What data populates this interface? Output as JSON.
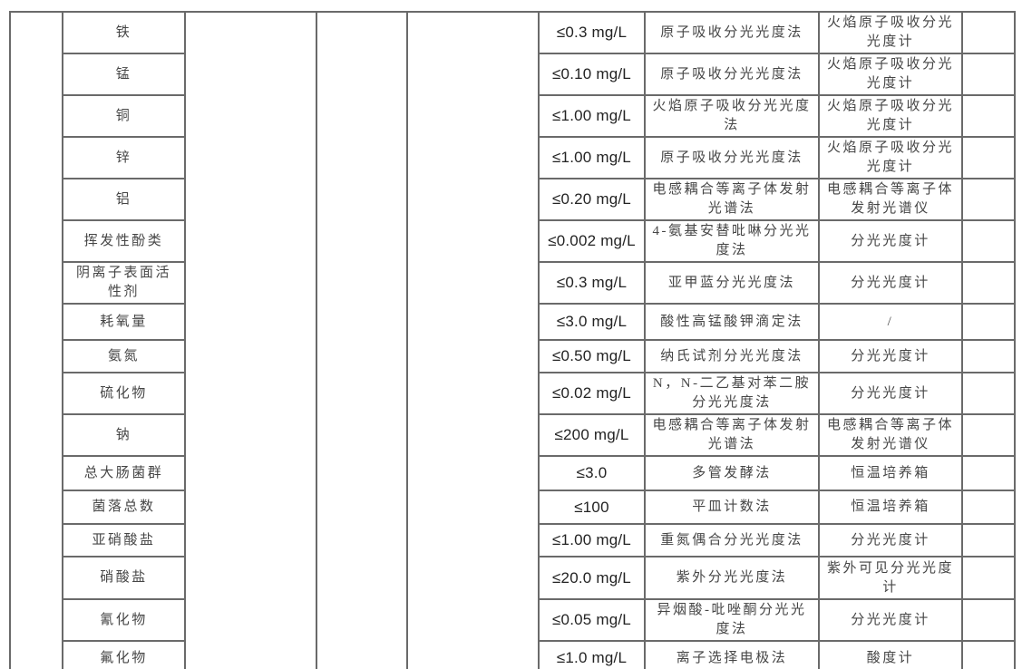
{
  "page": {
    "background_color": "#ffffff",
    "border_color": "#6a6a6a",
    "cjk_text_color": "#464646",
    "limit_text_color": "#232323"
  },
  "table": {
    "rows": [
      {
        "name": "铁",
        "limit": "≤0.3 mg/L",
        "method": "原子吸收分光光度法",
        "instrument": "火焰原子吸收分光\n光度计"
      },
      {
        "name": "锰",
        "limit": "≤0.10 mg/L",
        "method": "原子吸收分光光度法",
        "instrument": "火焰原子吸收分光\n光度计"
      },
      {
        "name": "铜",
        "limit": "≤1.00 mg/L",
        "method": "火焰原子吸收分光光度\n法",
        "instrument": "火焰原子吸收分光\n光度计"
      },
      {
        "name": "锌",
        "limit": "≤1.00 mg/L",
        "method": "原子吸收分光光度法",
        "instrument": "火焰原子吸收分光\n光度计"
      },
      {
        "name": "铝",
        "limit": "≤0.20 mg/L",
        "method": "电感耦合等离子体发射\n光谱法",
        "instrument": "电感耦合等离子体\n发射光谱仪"
      },
      {
        "name": "挥发性酚类",
        "limit": "≤0.002 mg/L",
        "method": "4-氨基安替吡啉分光光\n度法",
        "instrument": "分光光度计"
      },
      {
        "name": "阴离子表面活\n性剂",
        "limit": "≤0.3 mg/L",
        "method": "亚甲蓝分光光度法",
        "instrument": "分光光度计"
      },
      {
        "name": "耗氧量",
        "limit": "≤3.0 mg/L",
        "method": "酸性高锰酸钾滴定法",
        "instrument": "/"
      },
      {
        "name": "氨氮",
        "limit": "≤0.50 mg/L",
        "method": "纳氏试剂分光光度法",
        "instrument": "分光光度计"
      },
      {
        "name": "硫化物",
        "limit": "≤0.02 mg/L",
        "method": "N，N-二乙基对苯二胺\n分光光度法",
        "instrument": "分光光度计"
      },
      {
        "name": "钠",
        "limit": "≤200 mg/L",
        "method": "电感耦合等离子体发射\n光谱法",
        "instrument": "电感耦合等离子体\n发射光谱仪"
      },
      {
        "name": "总大肠菌群",
        "limit": "≤3.0",
        "method": "多管发酵法",
        "instrument": "恒温培养箱"
      },
      {
        "name": "菌落总数",
        "limit": "≤100",
        "method": "平皿计数法",
        "instrument": "恒温培养箱"
      },
      {
        "name": "亚硝酸盐",
        "limit": "≤1.00 mg/L",
        "method": "重氮偶合分光光度法",
        "instrument": "分光光度计"
      },
      {
        "name": "硝酸盐",
        "limit": "≤20.0 mg/L",
        "method": "紫外分光光度法",
        "instrument": "紫外可见分光光度\n计"
      },
      {
        "name": "氰化物",
        "limit": "≤0.05 mg/L",
        "method": "异烟酸-吡唑酮分光光\n度法",
        "instrument": "分光光度计"
      },
      {
        "name": "氟化物",
        "limit": "≤1.0 mg/L",
        "method": "离子选择电极法",
        "instrument": "酸度计"
      }
    ]
  }
}
